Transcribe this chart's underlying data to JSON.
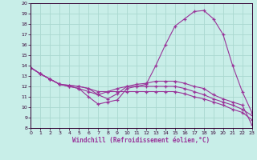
{
  "background_color": "#c8eee8",
  "grid_color": "#aad8d0",
  "line_color": "#993399",
  "xlabel": "Windchill (Refroidissement éolien,°C)",
  "xlim": [
    0,
    23
  ],
  "ylim": [
    8,
    20
  ],
  "xticks": [
    0,
    1,
    2,
    3,
    4,
    5,
    6,
    7,
    8,
    9,
    10,
    11,
    12,
    13,
    14,
    15,
    16,
    17,
    18,
    19,
    20,
    21,
    22,
    23
  ],
  "yticks": [
    8,
    9,
    10,
    11,
    12,
    13,
    14,
    15,
    16,
    17,
    18,
    19,
    20
  ],
  "series": [
    [
      13.8,
      13.2,
      12.7,
      12.2,
      12.0,
      11.8,
      11.0,
      10.3,
      10.5,
      10.7,
      11.8,
      12.0,
      12.2,
      14.0,
      16.0,
      17.8,
      18.5,
      19.2,
      19.3,
      18.5,
      17.0,
      14.0,
      11.5,
      9.5
    ],
    [
      13.8,
      13.2,
      12.7,
      12.2,
      12.1,
      12.0,
      11.8,
      11.2,
      10.8,
      11.3,
      12.0,
      12.2,
      12.3,
      12.5,
      12.5,
      12.5,
      12.3,
      12.0,
      11.8,
      11.2,
      10.8,
      10.5,
      10.2,
      8.3
    ],
    [
      13.8,
      13.2,
      12.7,
      12.2,
      12.0,
      11.8,
      11.5,
      11.2,
      11.5,
      11.8,
      12.0,
      12.0,
      12.0,
      12.0,
      12.0,
      12.0,
      11.8,
      11.5,
      11.2,
      10.8,
      10.5,
      10.2,
      9.8,
      9.2
    ],
    [
      13.8,
      13.2,
      12.7,
      12.2,
      12.1,
      12.0,
      11.8,
      11.5,
      11.5,
      11.5,
      11.5,
      11.5,
      11.5,
      11.5,
      11.5,
      11.5,
      11.3,
      11.0,
      10.8,
      10.5,
      10.2,
      9.8,
      9.5,
      8.8
    ]
  ]
}
